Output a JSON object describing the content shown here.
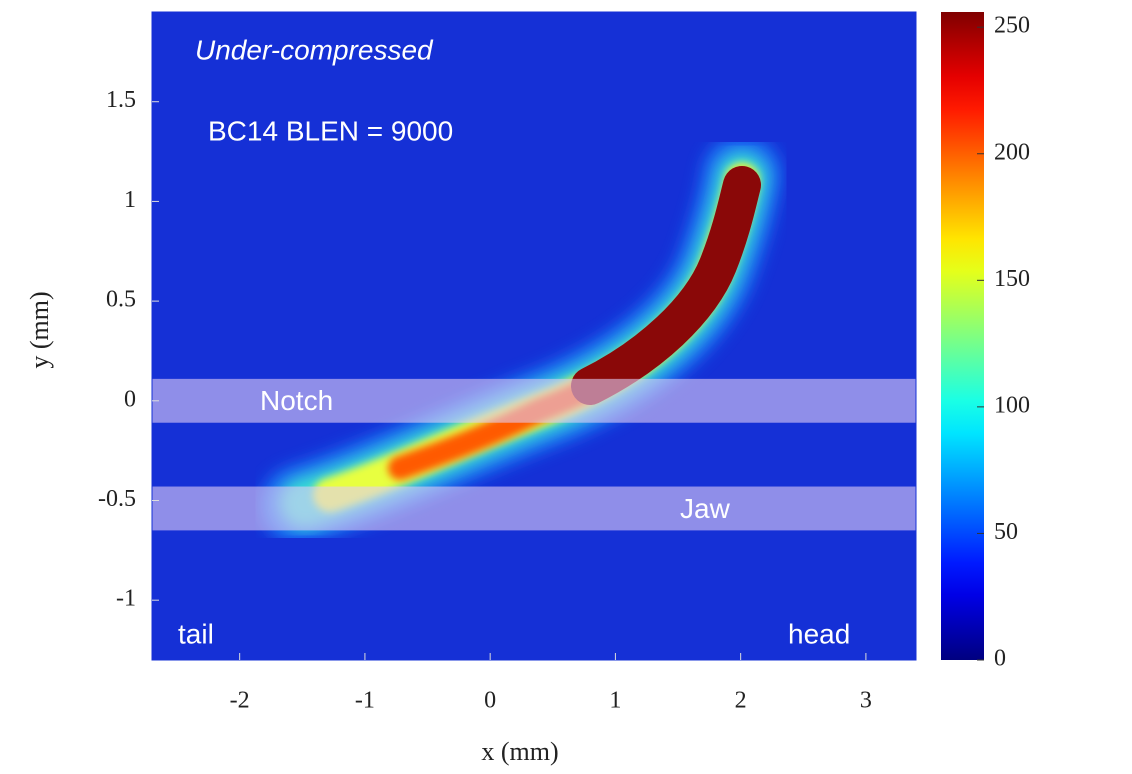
{
  "chart_data": {
    "type": "heatmap",
    "xlabel": "x  (mm)",
    "ylabel": "y  (mm)",
    "xlim": [
      -2.7,
      3.4
    ],
    "ylim": [
      -1.3,
      1.95
    ],
    "xticks": [
      -2,
      -1,
      0,
      1,
      2,
      3
    ],
    "yticks": [
      -1,
      -0.5,
      0,
      0.5,
      1,
      1.5
    ],
    "colormap": "jet",
    "colorbar": {
      "clim": [
        0,
        256
      ],
      "ticks": [
        0,
        50,
        100,
        150,
        200,
        250
      ]
    },
    "annotations": [
      "Under-compressed",
      "BC14 BLEN = 9000",
      "tail",
      "head"
    ],
    "bands": [
      {
        "label": "Notch",
        "ylim": [
          -0.11,
          0.11
        ]
      },
      {
        "label": "Jaw",
        "ylim": [
          -0.65,
          -0.43
        ]
      }
    ]
  }
}
